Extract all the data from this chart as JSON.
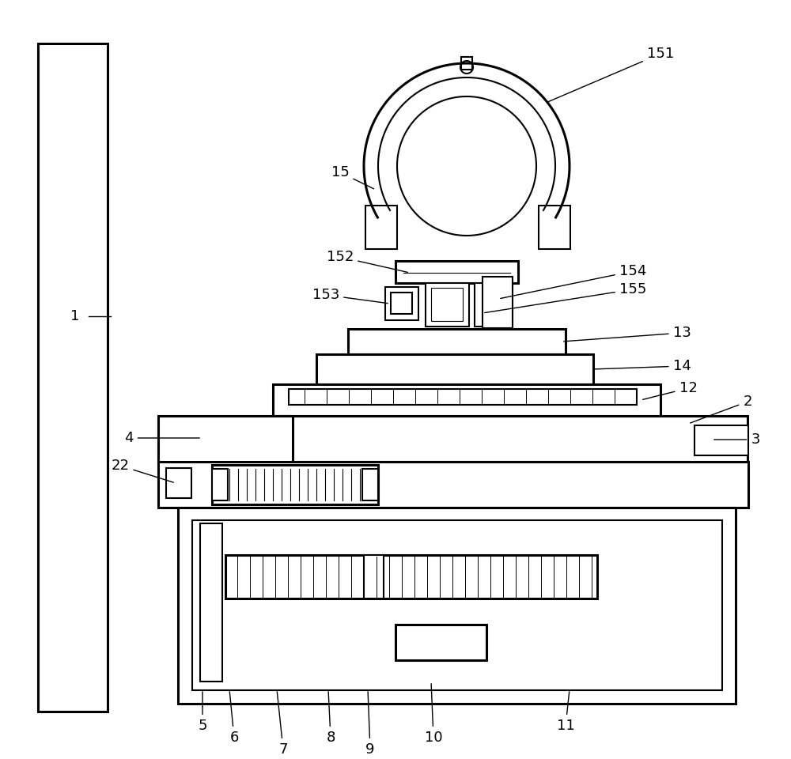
{
  "bg_color": "#ffffff",
  "line_color": "#000000",
  "lw": 1.5,
  "lw2": 2.2,
  "fig_width": 10.0,
  "fig_height": 9.6,
  "dpi": 100
}
